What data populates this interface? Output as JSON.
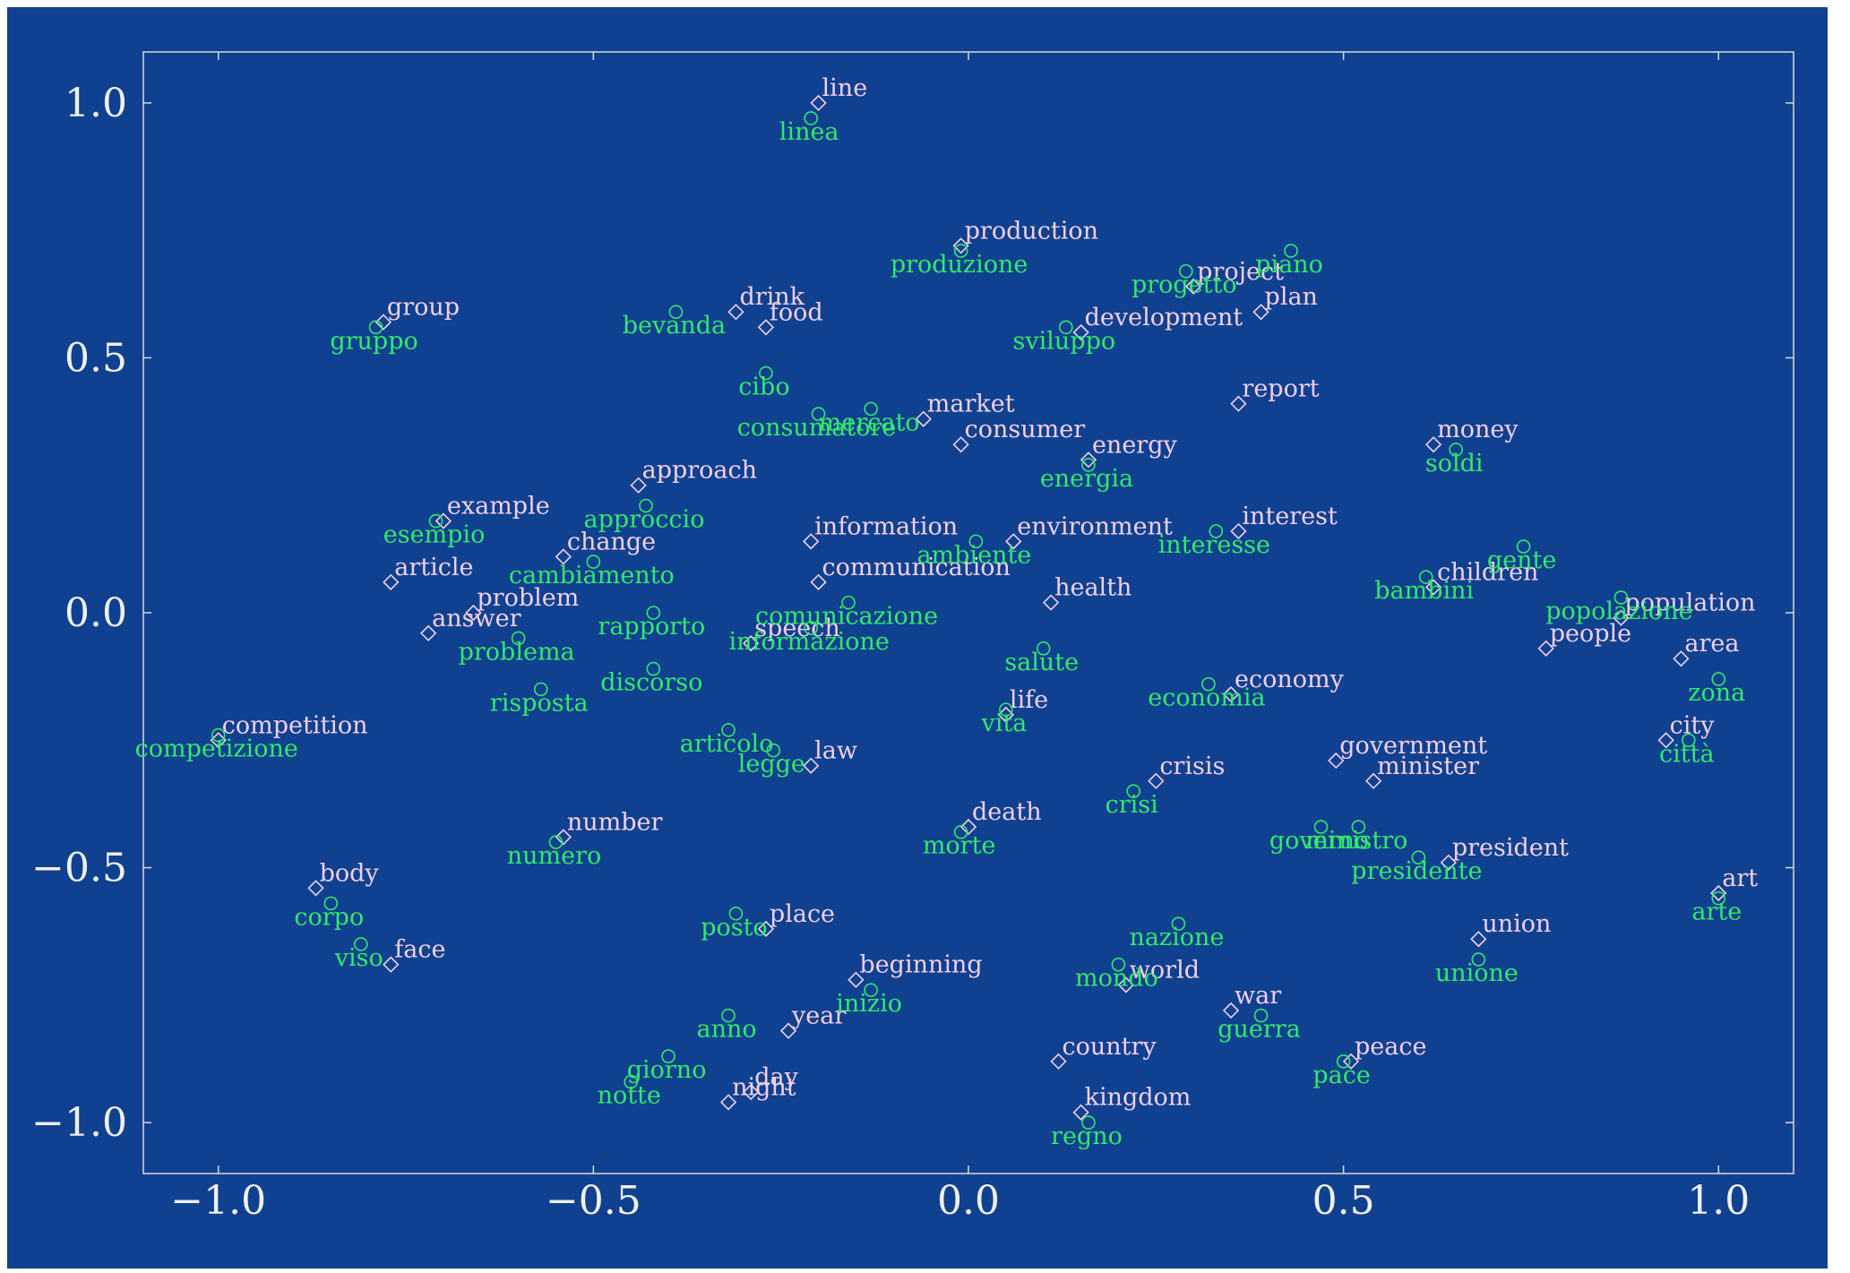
{
  "chart_data": {
    "type": "scatter",
    "title": "",
    "xlabel": "",
    "ylabel": "",
    "xlim": [
      -1.1,
      1.1
    ],
    "ylim": [
      -1.1,
      1.1
    ],
    "x_ticks": [
      -1.0,
      -0.5,
      0.0,
      0.5,
      1.0
    ],
    "y_ticks": [
      1.0,
      0.5,
      0.0,
      -0.5,
      -1.0
    ],
    "x_tick_labels": [
      "−1.0",
      "−0.5",
      "0.0",
      "0.5",
      "1.0"
    ],
    "y_tick_labels": [
      "1.0",
      "0.5",
      "0.0",
      "−0.5",
      "−1.0"
    ],
    "grid": false,
    "colors": {
      "background": "#0f4190",
      "english": "#f3cfe6",
      "italian": "#33e86a",
      "axes": "#d8d8d8"
    },
    "series": [
      {
        "marker": "diamond",
        "color": "#f3cfe6",
        "points": [
          {
            "label": "line",
            "x": -0.2,
            "y": 1.0
          },
          {
            "label": "production",
            "x": -0.01,
            "y": 0.72
          },
          {
            "label": "project",
            "x": 0.3,
            "y": 0.64
          },
          {
            "label": "plan",
            "x": 0.39,
            "y": 0.59
          },
          {
            "label": "development",
            "x": 0.15,
            "y": 0.55
          },
          {
            "label": "group",
            "x": -0.78,
            "y": 0.57
          },
          {
            "label": "drink",
            "x": -0.31,
            "y": 0.59
          },
          {
            "label": "food",
            "x": -0.27,
            "y": 0.56
          },
          {
            "label": "report",
            "x": 0.36,
            "y": 0.41
          },
          {
            "label": "market",
            "x": -0.06,
            "y": 0.38
          },
          {
            "label": "consumer",
            "x": -0.01,
            "y": 0.33
          },
          {
            "label": "money",
            "x": 0.62,
            "y": 0.33
          },
          {
            "label": "energy",
            "x": 0.16,
            "y": 0.3
          },
          {
            "label": "approach",
            "x": -0.44,
            "y": 0.25
          },
          {
            "label": "example",
            "x": -0.7,
            "y": 0.18
          },
          {
            "label": "interest",
            "x": 0.36,
            "y": 0.16
          },
          {
            "label": "environment",
            "x": 0.06,
            "y": 0.14
          },
          {
            "label": "information",
            "x": -0.21,
            "y": 0.14
          },
          {
            "label": "change",
            "x": -0.54,
            "y": 0.11
          },
          {
            "label": "article",
            "x": -0.77,
            "y": 0.06
          },
          {
            "label": "communication",
            "x": -0.2,
            "y": 0.06
          },
          {
            "label": "children",
            "x": 0.62,
            "y": 0.05
          },
          {
            "label": "health",
            "x": 0.11,
            "y": 0.02
          },
          {
            "label": "problem",
            "x": -0.66,
            "y": 0.0
          },
          {
            "label": "answer",
            "x": -0.72,
            "y": -0.04
          },
          {
            "label": "population",
            "x": 0.87,
            "y": -0.01
          },
          {
            "label": "speech",
            "x": -0.29,
            "y": -0.06
          },
          {
            "label": "people",
            "x": 0.77,
            "y": -0.07
          },
          {
            "label": "area",
            "x": 0.95,
            "y": -0.09
          },
          {
            "label": "economy",
            "x": 0.35,
            "y": -0.16
          },
          {
            "label": "life",
            "x": 0.05,
            "y": -0.2
          },
          {
            "label": "competition",
            "x": -1.0,
            "y": -0.25
          },
          {
            "label": "city",
            "x": 0.93,
            "y": -0.25
          },
          {
            "label": "law",
            "x": -0.21,
            "y": -0.3
          },
          {
            "label": "government",
            "x": 0.49,
            "y": -0.29
          },
          {
            "label": "minister",
            "x": 0.54,
            "y": -0.33
          },
          {
            "label": "crisis",
            "x": 0.25,
            "y": -0.33
          },
          {
            "label": "number",
            "x": -0.54,
            "y": -0.44
          },
          {
            "label": "death",
            "x": 0.0,
            "y": -0.42
          },
          {
            "label": "president",
            "x": 0.64,
            "y": -0.49
          },
          {
            "label": "body",
            "x": -0.87,
            "y": -0.54
          },
          {
            "label": "art",
            "x": 1.0,
            "y": -0.55
          },
          {
            "label": "place",
            "x": -0.27,
            "y": -0.62
          },
          {
            "label": "union",
            "x": 0.68,
            "y": -0.64
          },
          {
            "label": "face",
            "x": -0.77,
            "y": -0.69
          },
          {
            "label": "beginning",
            "x": -0.15,
            "y": -0.72
          },
          {
            "label": "world",
            "x": 0.21,
            "y": -0.73
          },
          {
            "label": "war",
            "x": 0.35,
            "y": -0.78
          },
          {
            "label": "year",
            "x": -0.24,
            "y": -0.82
          },
          {
            "label": "country",
            "x": 0.12,
            "y": -0.88
          },
          {
            "label": "peace",
            "x": 0.51,
            "y": -0.88
          },
          {
            "label": "day",
            "x": -0.29,
            "y": -0.94
          },
          {
            "label": "night",
            "x": -0.32,
            "y": -0.96
          },
          {
            "label": "kingdom",
            "x": 0.15,
            "y": -0.98
          }
        ]
      },
      {
        "marker": "circle",
        "color": "#33e86a",
        "points": [
          {
            "label": "linea",
            "x": -0.21,
            "y": 0.97
          },
          {
            "label": "produzione",
            "x": -0.01,
            "y": 0.71
          },
          {
            "label": "piano",
            "x": 0.43,
            "y": 0.71
          },
          {
            "label": "progetto",
            "x": 0.29,
            "y": 0.67
          },
          {
            "label": "sviluppo",
            "x": 0.13,
            "y": 0.56
          },
          {
            "label": "gruppo",
            "x": -0.79,
            "y": 0.56
          },
          {
            "label": "bevanda",
            "x": -0.39,
            "y": 0.59
          },
          {
            "label": "cibo",
            "x": -0.27,
            "y": 0.47
          },
          {
            "label": "mercato",
            "x": -0.13,
            "y": 0.4
          },
          {
            "label": "consumatore",
            "x": -0.2,
            "y": 0.39
          },
          {
            "label": "soldi",
            "x": 0.65,
            "y": 0.32
          },
          {
            "label": "energia",
            "x": 0.16,
            "y": 0.29
          },
          {
            "label": "approccio",
            "x": -0.43,
            "y": 0.21
          },
          {
            "label": "esempio",
            "x": -0.71,
            "y": 0.18
          },
          {
            "label": "interesse",
            "x": 0.33,
            "y": 0.16
          },
          {
            "label": "ambiente",
            "x": 0.01,
            "y": 0.14
          },
          {
            "label": "cambiamento",
            "x": -0.5,
            "y": 0.1
          },
          {
            "label": "gente",
            "x": 0.74,
            "y": 0.13
          },
          {
            "label": "bambini",
            "x": 0.61,
            "y": 0.07
          },
          {
            "label": "popolazione",
            "x": 0.87,
            "y": 0.03
          },
          {
            "label": "comunicazione",
            "x": -0.16,
            "y": 0.02
          },
          {
            "label": "rapporto",
            "x": -0.42,
            "y": 0.0
          },
          {
            "label": "problema",
            "x": -0.6,
            "y": -0.05
          },
          {
            "label": "informazione",
            "x": -0.21,
            "y": -0.03
          },
          {
            "label": "salute",
            "x": 0.1,
            "y": -0.07
          },
          {
            "label": "discorso",
            "x": -0.42,
            "y": -0.11
          },
          {
            "label": "risposta",
            "x": -0.57,
            "y": -0.15
          },
          {
            "label": "zona",
            "x": 1.0,
            "y": -0.13
          },
          {
            "label": "economia",
            "x": 0.32,
            "y": -0.14
          },
          {
            "label": "vita",
            "x": 0.05,
            "y": -0.19
          },
          {
            "label": "competizione",
            "x": -1.0,
            "y": -0.24
          },
          {
            "label": "città",
            "x": 0.96,
            "y": -0.25
          },
          {
            "label": "articolo",
            "x": -0.32,
            "y": -0.23
          },
          {
            "label": "legge",
            "x": -0.26,
            "y": -0.27
          },
          {
            "label": "crisi",
            "x": 0.22,
            "y": -0.35
          },
          {
            "label": "numero",
            "x": -0.55,
            "y": -0.45
          },
          {
            "label": "morte",
            "x": -0.01,
            "y": -0.43
          },
          {
            "label": "governo",
            "x": 0.47,
            "y": -0.42
          },
          {
            "label": "ministro",
            "x": 0.52,
            "y": -0.42
          },
          {
            "label": "presidente",
            "x": 0.6,
            "y": -0.48
          },
          {
            "label": "corpo",
            "x": -0.85,
            "y": -0.57
          },
          {
            "label": "arte",
            "x": 1.0,
            "y": -0.56
          },
          {
            "label": "posto",
            "x": -0.31,
            "y": -0.59
          },
          {
            "label": "nazione",
            "x": 0.28,
            "y": -0.61
          },
          {
            "label": "viso",
            "x": -0.81,
            "y": -0.65
          },
          {
            "label": "unione",
            "x": 0.68,
            "y": -0.68
          },
          {
            "label": "mondo",
            "x": 0.2,
            "y": -0.69
          },
          {
            "label": "inizio",
            "x": -0.13,
            "y": -0.74
          },
          {
            "label": "guerra",
            "x": 0.39,
            "y": -0.79
          },
          {
            "label": "anno",
            "x": -0.32,
            "y": -0.79
          },
          {
            "label": "giorno",
            "x": -0.4,
            "y": -0.87
          },
          {
            "label": "pace",
            "x": 0.5,
            "y": -0.88
          },
          {
            "label": "notte",
            "x": -0.45,
            "y": -0.92
          },
          {
            "label": "regno",
            "x": 0.16,
            "y": -1.0
          }
        ]
      }
    ]
  }
}
